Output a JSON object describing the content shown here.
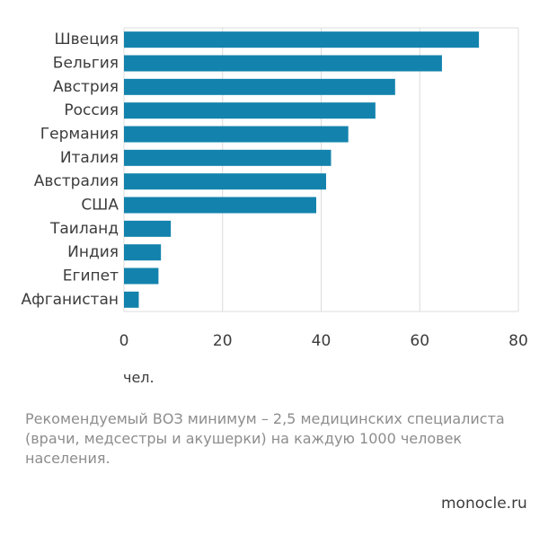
{
  "chart_data": {
    "type": "bar",
    "orientation": "horizontal",
    "categories": [
      "Швеция",
      "Бельгия",
      "Австрия",
      "Россия",
      "Германия",
      "Италия",
      "Австралия",
      "США",
      "Таиланд",
      "Индия",
      "Египет",
      "Афганистан"
    ],
    "values": [
      72,
      64.5,
      55,
      51,
      45.5,
      42,
      41,
      39,
      9.5,
      7.5,
      7,
      3
    ],
    "xticks": [
      0,
      20,
      40,
      60,
      80
    ],
    "xlim": [
      0,
      80
    ],
    "xlabel": "чел.",
    "grid": true,
    "colors": {
      "bar": "#1383ad"
    }
  },
  "note": "Рекомендуемый ВОЗ минимум – 2,5 медицинских специалиста (врачи, медсестры и акушерки) на каждую 1000 человек населения.",
  "source": "monocle.ru"
}
